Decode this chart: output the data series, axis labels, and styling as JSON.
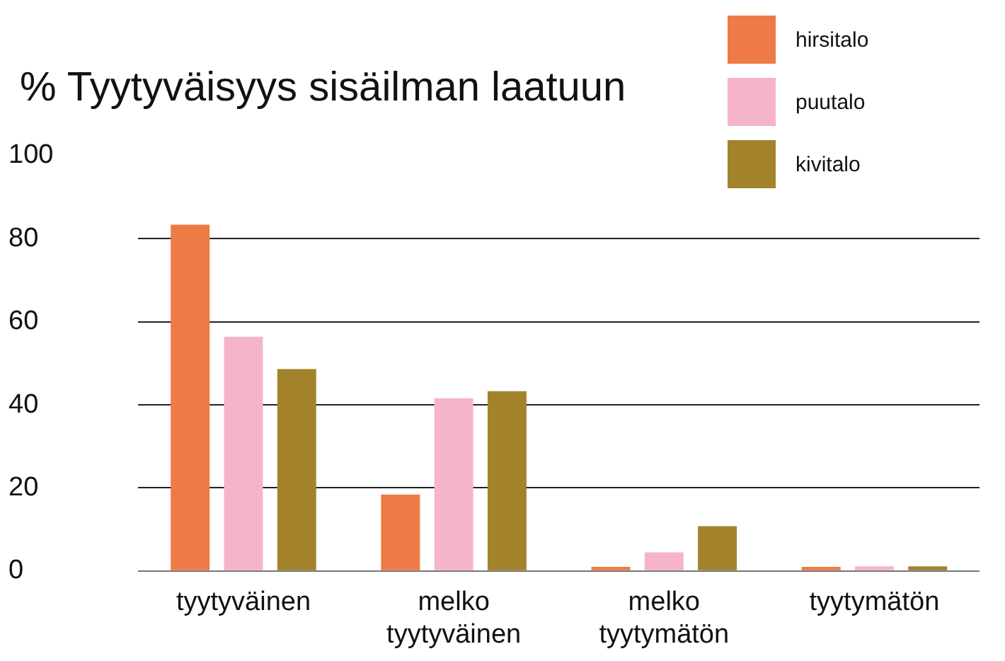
{
  "chart_data": {
    "type": "bar",
    "title": "% Tyytyväisyys sisäilman laatuun",
    "categories": [
      "tyytyväinen",
      "melko tyytyväinen",
      "melko tyytymätön",
      "tyytymätön"
    ],
    "series": [
      {
        "name": "hirsitalo",
        "color": "#ee7a45",
        "values": [
          83.4,
          18.4,
          1,
          1
        ]
      },
      {
        "name": "puutalo",
        "color": "#f5b4c9",
        "values": [
          56.4,
          41.6,
          4.5,
          1.1
        ]
      },
      {
        "name": "kivitalo",
        "color": "#a3822c",
        "values": [
          48.6,
          43.3,
          10.8,
          1.1
        ]
      }
    ],
    "ylim": [
      0,
      100
    ],
    "yticks": [
      0,
      20,
      40,
      60,
      80,
      100
    ],
    "grid": "y",
    "legend": "top right"
  }
}
